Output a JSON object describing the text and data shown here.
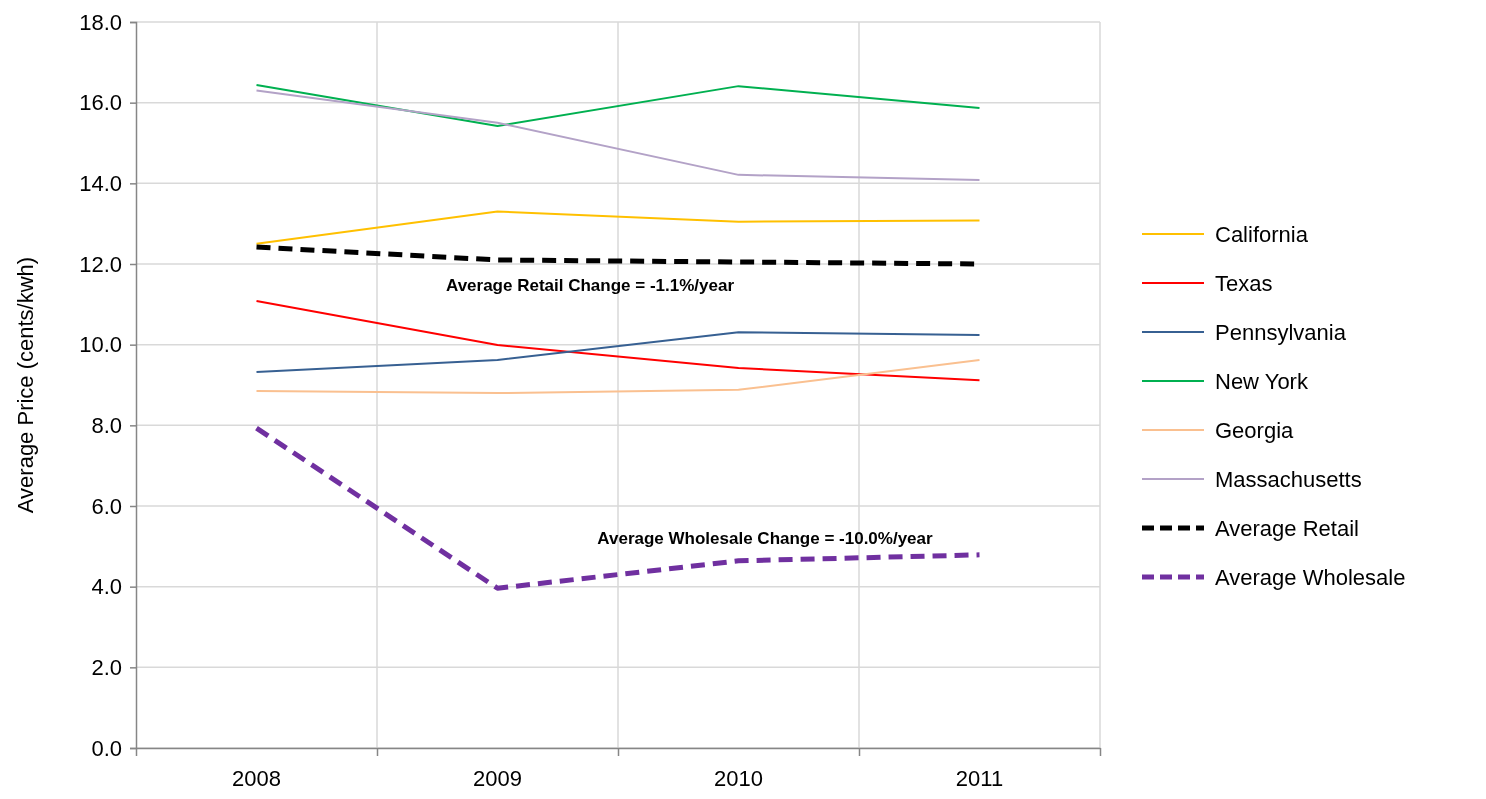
{
  "chart_data": {
    "type": "line",
    "ylabel": "Average Price (cents/kwh)",
    "categories": [
      "2008",
      "2009",
      "2010",
      "2011"
    ],
    "ylim": [
      0,
      18
    ],
    "yticks": [
      {
        "value": 0,
        "label": "0.0"
      },
      {
        "value": 2,
        "label": "2.0"
      },
      {
        "value": 4,
        "label": "4.0"
      },
      {
        "value": 6,
        "label": "6.0"
      },
      {
        "value": 8,
        "label": "8.0"
      },
      {
        "value": 10,
        "label": "10.0"
      },
      {
        "value": 12,
        "label": "12.0"
      },
      {
        "value": 14,
        "label": "14.0"
      },
      {
        "value": 16,
        "label": "16.0"
      },
      {
        "value": 18,
        "label": "18.0"
      }
    ],
    "grid": true,
    "legend": "right",
    "marker": "none",
    "series": [
      {
        "name": "California",
        "color": "#ffc000",
        "values": [
          12.5,
          13.3,
          13.05,
          13.08
        ]
      },
      {
        "name": "Texas",
        "color": "#ff0000",
        "values": [
          11.08,
          9.99,
          9.42,
          9.12
        ]
      },
      {
        "name": "Pennsylvania",
        "color": "#376092",
        "values": [
          9.32,
          9.62,
          10.31,
          10.24
        ]
      },
      {
        "name": "New York",
        "color": "#00b050",
        "values": [
          16.44,
          15.42,
          16.41,
          15.87
        ]
      },
      {
        "name": "Georgia",
        "color": "#fac090",
        "values": [
          8.85,
          8.8,
          8.88,
          9.62
        ]
      },
      {
        "name": "Massachusetts",
        "color": "#b3a2c7",
        "values": [
          16.3,
          15.5,
          14.21,
          14.08
        ]
      },
      {
        "name": "Average Retail",
        "color": "#000000",
        "line_style": "dashed",
        "values": [
          12.42,
          12.1,
          12.05,
          12.0
        ]
      },
      {
        "name": "Average Wholesale",
        "color": "#7030a0",
        "line_style": "dashed",
        "values": [
          7.93,
          3.96,
          4.64,
          4.79
        ]
      }
    ],
    "annotations": [
      "Average Retail Change = -1.1%/year",
      "Average Wholesale Change = -10.0%/year"
    ]
  }
}
